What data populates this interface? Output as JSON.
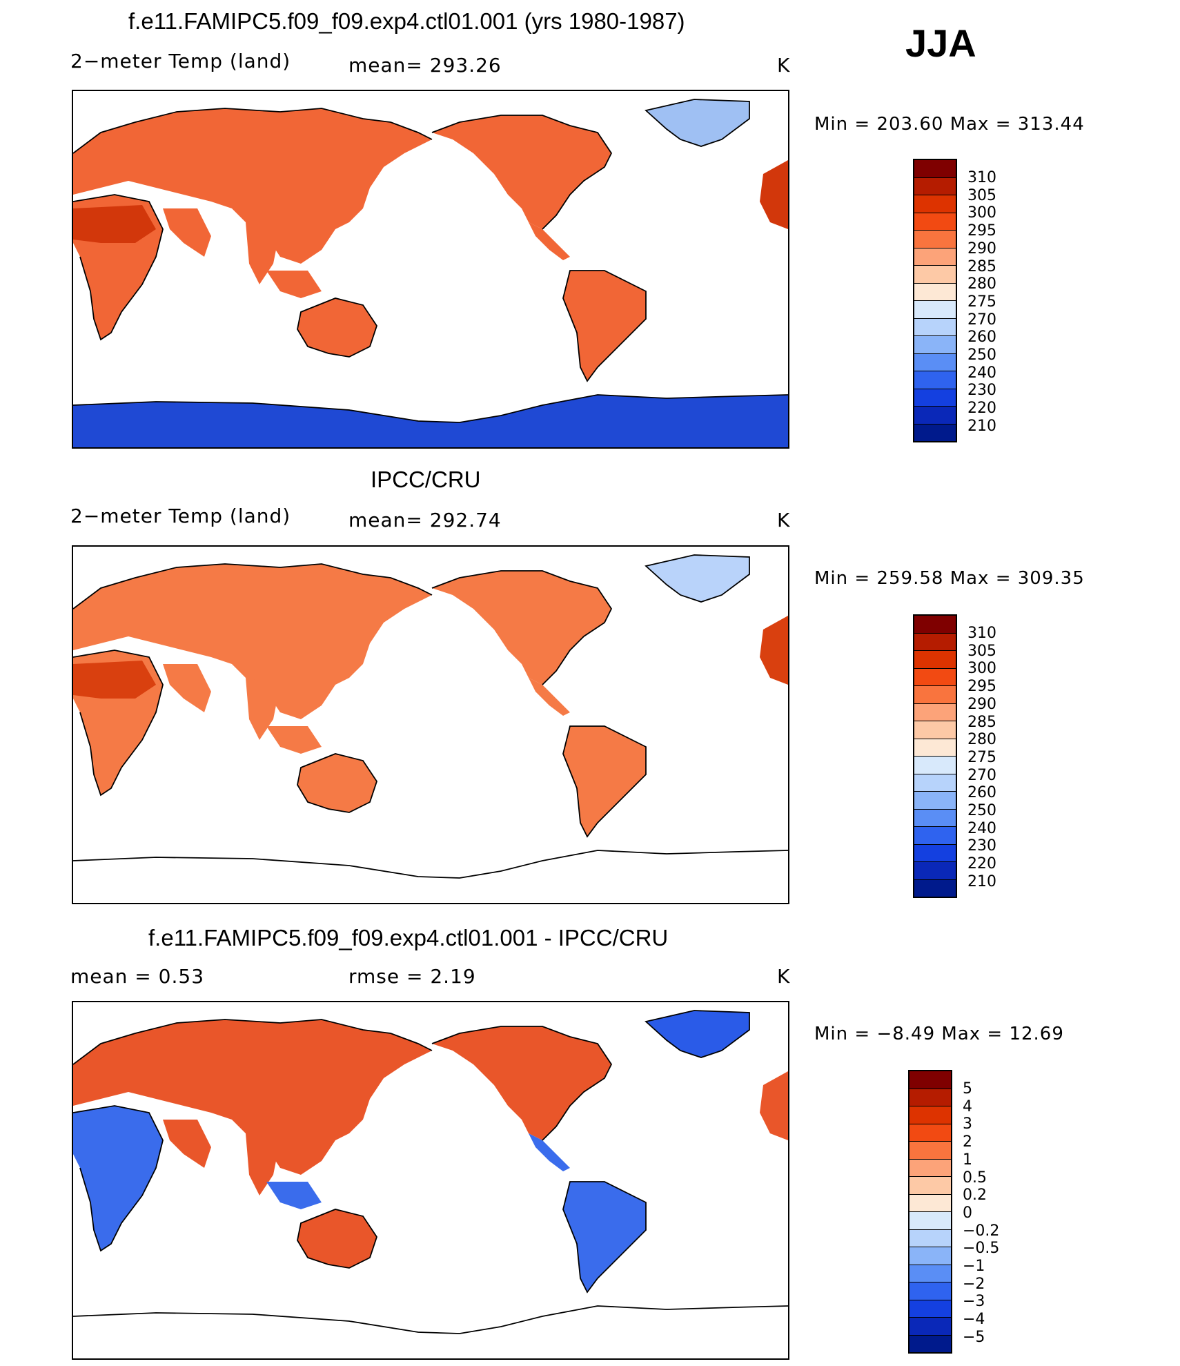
{
  "season": "JJA",
  "panels": [
    {
      "id": "model",
      "title": "f.e11.FAMIPC5.f09_f09.exp4.ctl01.001 (yrs 1980-1987)",
      "left_label": "2−meter Temp (land)",
      "center_label": "mean=  293.26",
      "units": "K",
      "stats": "Min  =  203.60  Max  =  313.44",
      "colorbar": {
        "ticks": [
          "310",
          "305",
          "300",
          "295",
          "290",
          "285",
          "280",
          "275",
          "270",
          "260",
          "250",
          "240",
          "230",
          "220",
          "210"
        ],
        "colors": [
          "#7f0000",
          "#b51c00",
          "#dd3300",
          "#f24a12",
          "#f9743e",
          "#fca379",
          "#fdc9a6",
          "#fde8d5",
          "#d8e9fb",
          "#b7d3fb",
          "#8ab4f8",
          "#5a8ef5",
          "#2f63ef",
          "#1440e0",
          "#0a28b8",
          "#001a8c"
        ]
      },
      "map_fill": {
        "antarctica_color": "#1f49d4",
        "greenland_color": "#9fc0f3",
        "sahara_color": "#d2370b",
        "land_color": "#f16636"
      }
    },
    {
      "id": "obs",
      "title": "IPCC/CRU",
      "left_label": "2−meter Temp (land)",
      "center_label": "mean=  292.74",
      "units": "K",
      "stats": "Min  =  259.58  Max  =  309.35",
      "colorbar": {
        "ticks": [
          "310",
          "305",
          "300",
          "295",
          "290",
          "285",
          "280",
          "275",
          "270",
          "260",
          "250",
          "240",
          "230",
          "220",
          "210"
        ],
        "colors": [
          "#7f0000",
          "#b51c00",
          "#dd3300",
          "#f24a12",
          "#f9743e",
          "#fca379",
          "#fdc9a6",
          "#fde8d5",
          "#d8e9fb",
          "#b7d3fb",
          "#8ab4f8",
          "#5a8ef5",
          "#2f63ef",
          "#1440e0",
          "#0a28b8",
          "#001a8c"
        ]
      },
      "map_fill": {
        "antarctica_color": "#ffffff",
        "greenland_color": "#b9d3fa",
        "sahara_color": "#d9400f",
        "land_color": "#f57a46"
      }
    },
    {
      "id": "diff",
      "title": "f.e11.FAMIPC5.f09_f09.exp4.ctl01.001 - IPCC/CRU",
      "left_label": "mean  =      0.53",
      "center_label": "rmse  =      2.19",
      "units": "K",
      "stats": "Min  =      −8.49  Max  =      12.69",
      "colorbar": {
        "ticks": [
          "5",
          "4",
          "3",
          "2",
          "1",
          "0.5",
          "0.2",
          "0",
          "−0.2",
          "−0.5",
          "−1",
          "−2",
          "−3",
          "−4",
          "−5"
        ],
        "colors": [
          "#7f0000",
          "#b51c00",
          "#dd3300",
          "#f24a12",
          "#f9743e",
          "#fca379",
          "#fdc9a6",
          "#fde8d5",
          "#d8e9fb",
          "#b7d3fb",
          "#8ab4f8",
          "#5a8ef5",
          "#2f63ef",
          "#1440e0",
          "#0a28b8",
          "#001a8c"
        ]
      },
      "map_fill": {
        "antarctica_color": "#ffffff",
        "greenland_color": "#2a5be8",
        "sahara_color": "#3a6cec",
        "land_color": "#e9562a"
      }
    }
  ]
}
